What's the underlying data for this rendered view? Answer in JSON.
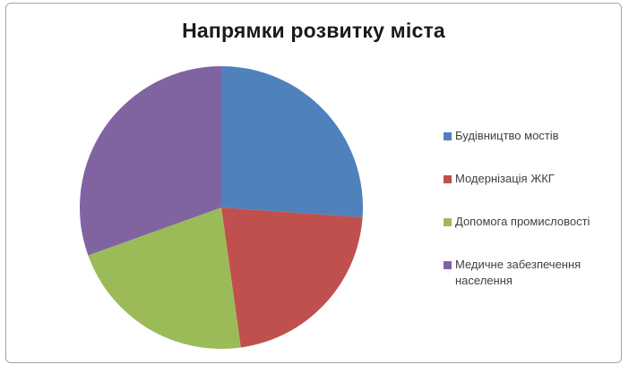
{
  "chart_data": {
    "type": "pie",
    "title": "Напрямки розвитку міста",
    "labels": [
      "Будівництво мостів",
      "Модернізація ЖКГ",
      "Допомога промисловості",
      "Медичне забезпечення населення"
    ],
    "values_percent": [
      26.1,
      21.7,
      21.7,
      30.5
    ],
    "colors": [
      "#4F81BD",
      "#C0504D",
      "#9BBB59",
      "#8064A2"
    ],
    "start_angle_deg": 0,
    "direction": "clockwise",
    "legend_position": "right",
    "data_labels": "none",
    "frame_border_color": "#a6a6a6",
    "background_color": "#ffffff"
  }
}
